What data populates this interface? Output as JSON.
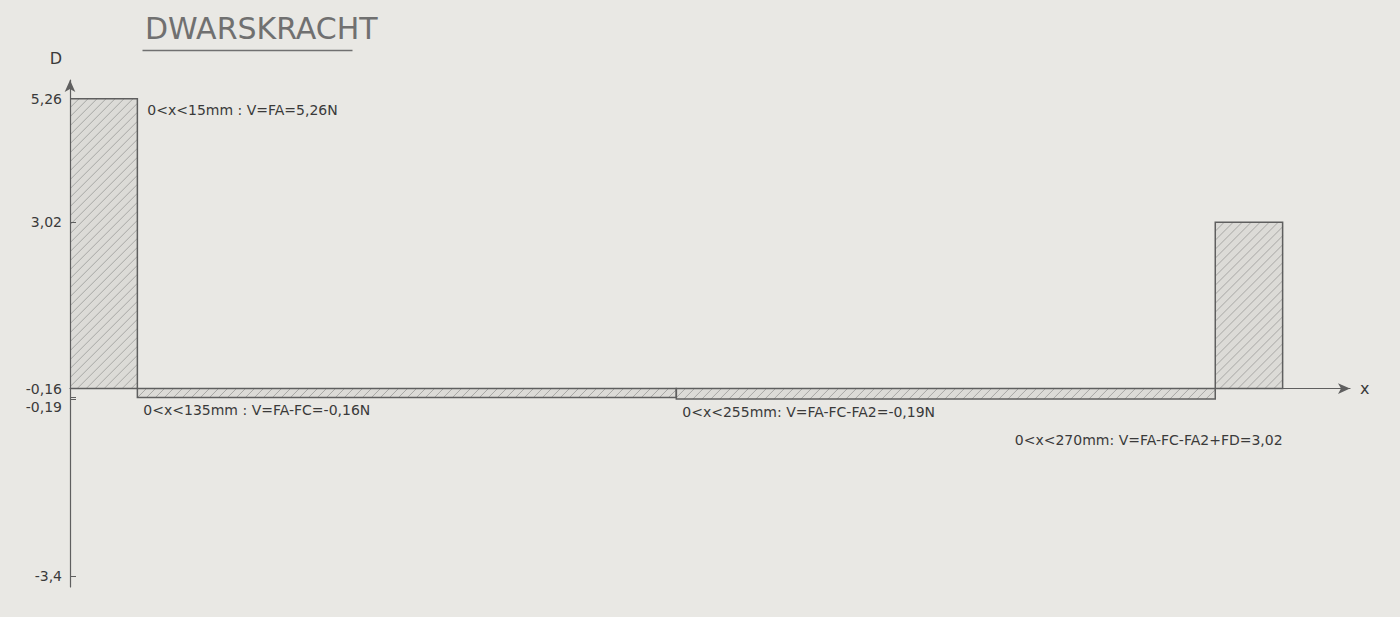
{
  "chart_data": {
    "type": "step",
    "title": "DWARSKRACHT",
    "x_label": "x",
    "y_label": "D",
    "segments": [
      {
        "x_start": 0,
        "x_end": 15,
        "value": 5.26,
        "annotation": "0<x<15mm : V=FA=5,26N"
      },
      {
        "x_start": 15,
        "x_end": 135,
        "value": -0.16,
        "annotation": "0<x<135mm : V=FA-FC=-0,16N"
      },
      {
        "x_start": 135,
        "x_end": 255,
        "value": -0.19,
        "annotation": "0<x<255mm: V=FA-FC-FA2=-0,19N"
      },
      {
        "x_start": 255,
        "x_end": 270,
        "value": 3.02,
        "annotation": "0<x<270mm: V=FA-FC-FA2+FD=3,02"
      }
    ],
    "xlim": [
      0,
      285
    ],
    "ylim": [
      -3.6,
      5.6
    ],
    "yticks": [
      {
        "value": -3.4,
        "label": "-3,4"
      },
      {
        "value": -0.19,
        "label": "-0,19"
      },
      {
        "value": -0.16,
        "label": "-0,16"
      },
      {
        "value": 3.02,
        "label": "3,02"
      },
      {
        "value": 5.26,
        "label": "5,26"
      }
    ],
    "grid": false,
    "tick_labels": "y",
    "color": "#5f5f5f"
  }
}
